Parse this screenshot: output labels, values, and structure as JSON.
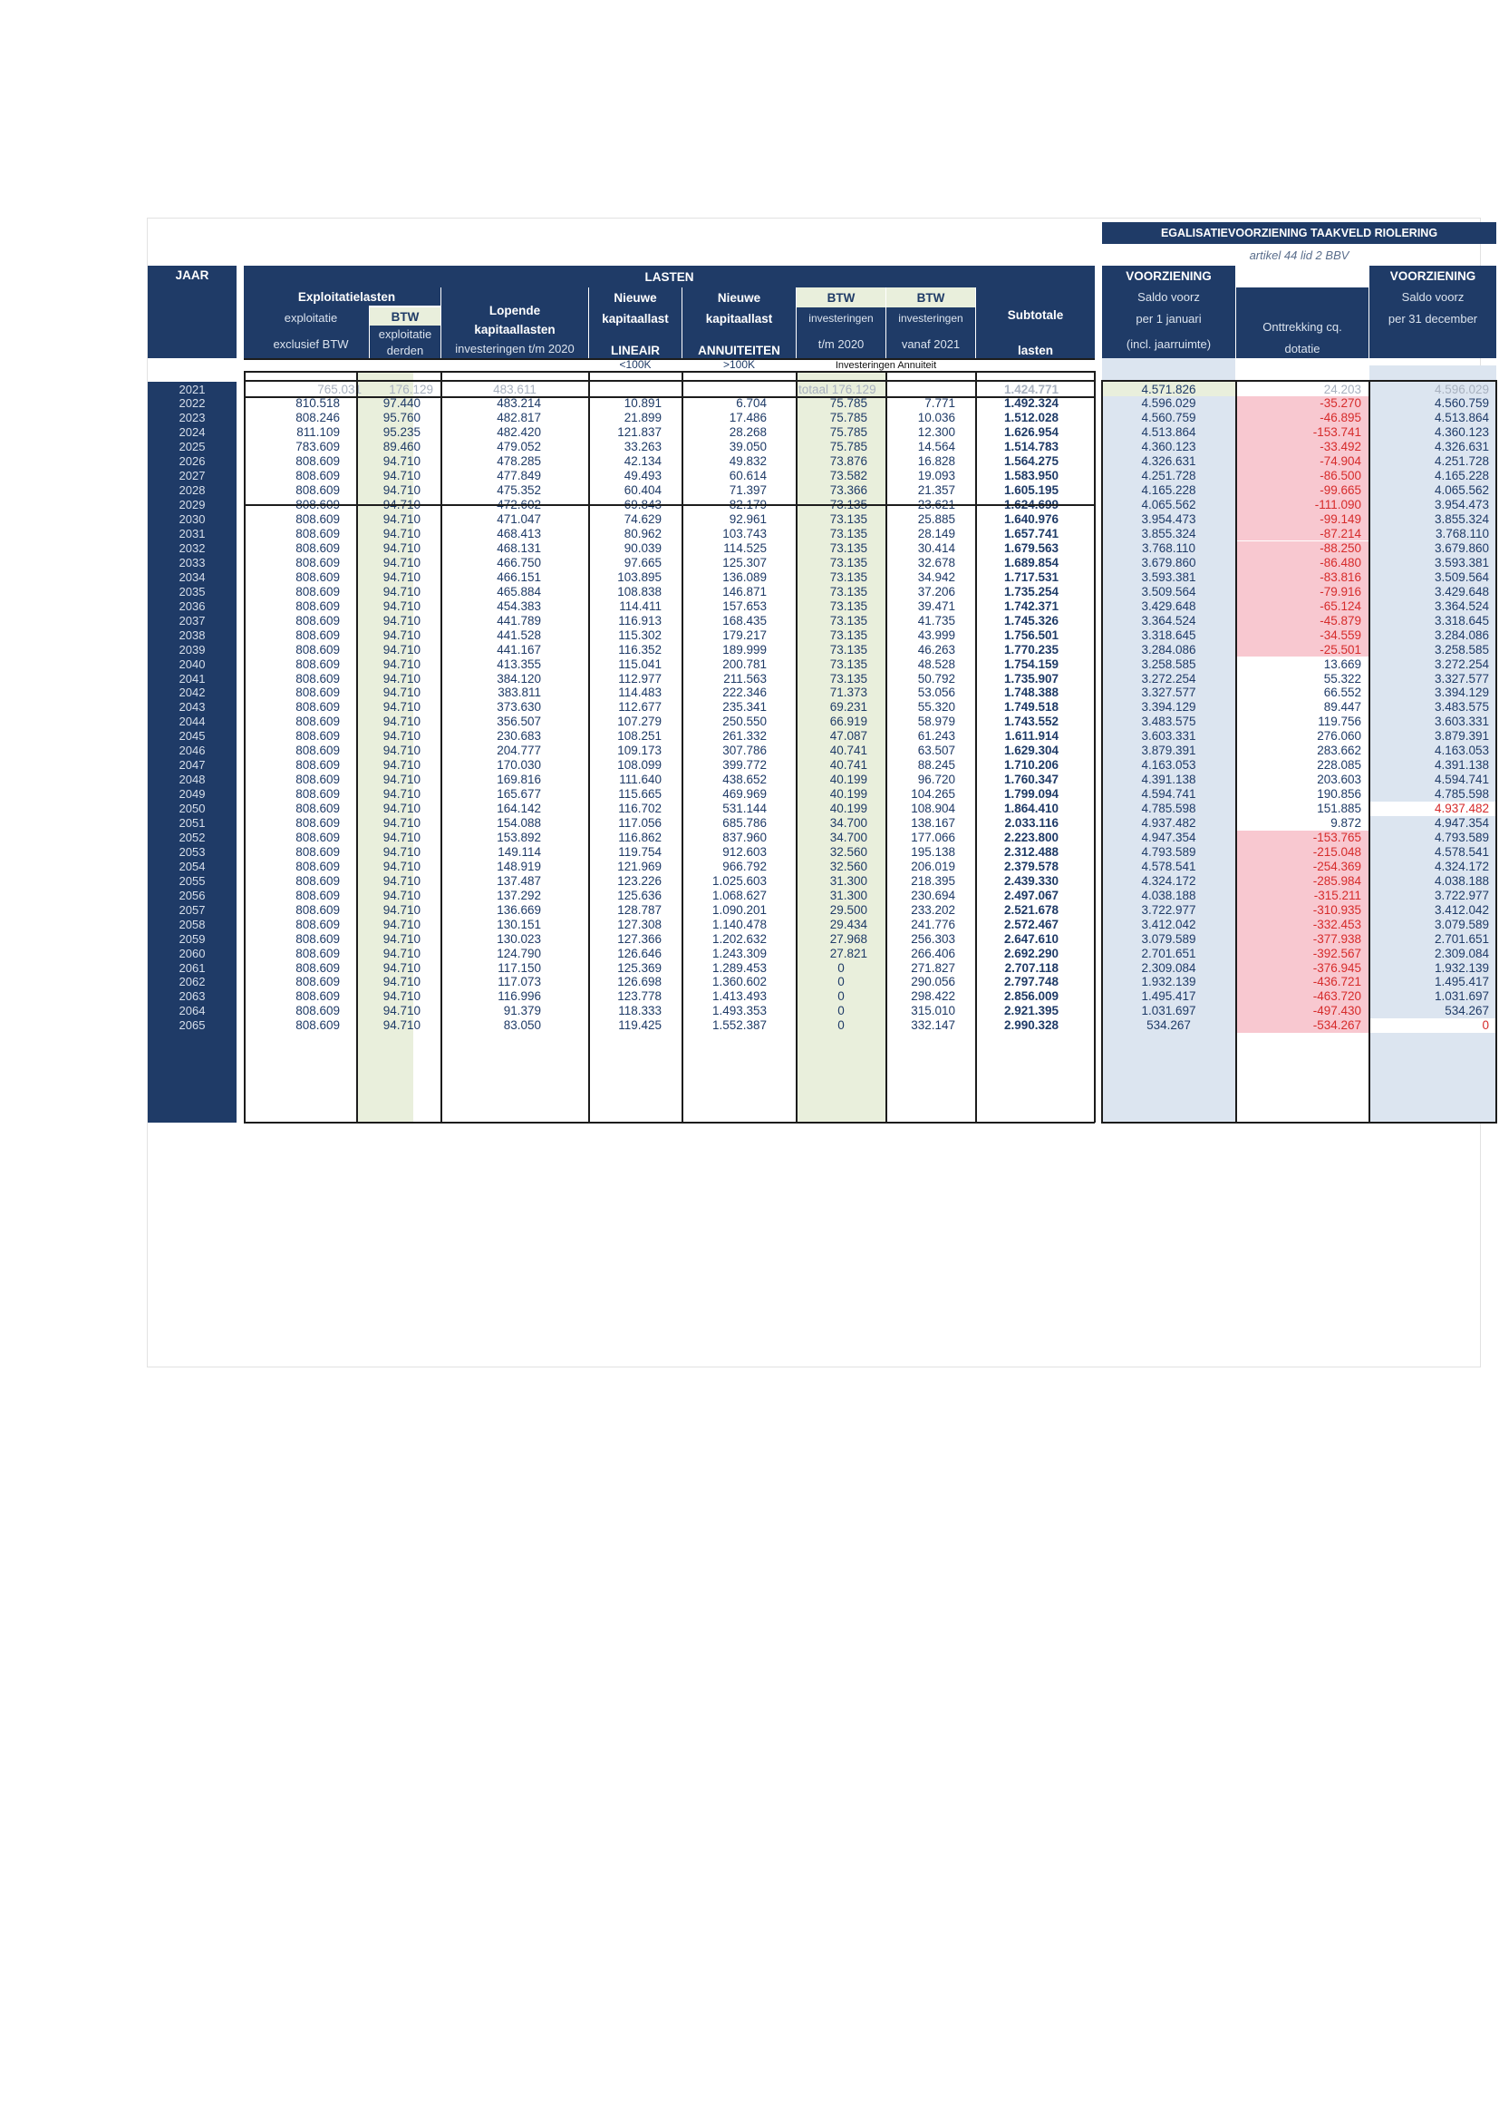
{
  "title_banner": "EGALISATIEVOORZIENING TAAKVELD RIOLERING",
  "subtitle": "artikel 44 lid 2 BBV",
  "headers": {
    "jaar": "JAAR",
    "lasten": "LASTEN",
    "exploitatielasten": "Exploitatielasten",
    "exploitatie": "exploitatie",
    "exclusief_btw": "exclusief BTW",
    "btw": "BTW",
    "btw_exploitatie": "exploitatie",
    "btw_derden": "derden",
    "lopende": "Lopende",
    "kapitaallasten": "kapitaallasten",
    "investeringen_tm2020": "investeringen t/m 2020",
    "nieuwe1": "Nieuwe",
    "kapitaallast1": "kapitaallast",
    "lineair": "LINEAIR",
    "lt100k": "<100K",
    "nieuwe2": "Nieuwe",
    "kapitaallast2": "kapitaallast",
    "annuiteiten": "ANNUITEITEN",
    "gt100k": ">100K",
    "btw_inv": "BTW",
    "investeringen1": "investeringen",
    "tm2020": "t/m 2020",
    "btw_inv2": "BTW",
    "investeringen2": "investeringen",
    "vanaf2021": "vanaf 2021",
    "subtotale": "Subtotale",
    "lasten_lbl": "lasten",
    "investeringen_annuiteit": "Investeringen Annuiteit",
    "voorziening1": "VOORZIENING",
    "saldo_voorz1": "Saldo voorz",
    "per_1_januari": "per 1 januari",
    "incl_jaarruimte": "(incl. jaarruimte)",
    "onttrekking": "Onttrekking cq.",
    "dotatie": "dotatie",
    "voorziening2": "VOORZIENING",
    "saldo_voorz2": "Saldo voorz",
    "per_31_december": "per 31 december"
  },
  "row_2021": {
    "year": "2021",
    "expl": "765.031",
    "btw": "176.129",
    "lopende": "483.611",
    "btw_inv": "totaal 176.129",
    "subtotaal": "1.424.771",
    "saldo_jan": "4.571.826",
    "onttrekking": "24.203",
    "saldo_dec": "4.596.029"
  },
  "rows": [
    [
      "2022",
      "810.518",
      "97.440",
      "483.214",
      "10.891",
      "6.704",
      "75.785",
      "7.771",
      "1.492.324",
      "4.596.029",
      "-35.270",
      "4.560.759"
    ],
    [
      "2023",
      "808.246",
      "95.760",
      "482.817",
      "21.899",
      "17.486",
      "75.785",
      "10.036",
      "1.512.028",
      "4.560.759",
      "-46.895",
      "4.513.864"
    ],
    [
      "2024",
      "811.109",
      "95.235",
      "482.420",
      "121.837",
      "28.268",
      "75.785",
      "12.300",
      "1.626.954",
      "4.513.864",
      "-153.741",
      "4.360.123"
    ],
    [
      "2025",
      "783.609",
      "89.460",
      "479.052",
      "33.263",
      "39.050",
      "75.785",
      "14.564",
      "1.514.783",
      "4.360.123",
      "-33.492",
      "4.326.631"
    ],
    [
      "2026",
      "808.609",
      "94.710",
      "478.285",
      "42.134",
      "49.832",
      "73.876",
      "16.828",
      "1.564.275",
      "4.326.631",
      "-74.904",
      "4.251.728"
    ],
    [
      "2027",
      "808.609",
      "94.710",
      "477.849",
      "49.493",
      "60.614",
      "73.582",
      "19.093",
      "1.583.950",
      "4.251.728",
      "-86.500",
      "4.165.228"
    ],
    [
      "2028",
      "808.609",
      "94.710",
      "475.352",
      "60.404",
      "71.397",
      "73.366",
      "21.357",
      "1.605.195",
      "4.165.228",
      "-99.665",
      "4.065.562"
    ],
    [
      "2029",
      "808.609",
      "94.710",
      "472.602",
      "69.843",
      "82.179",
      "73.135",
      "23.621",
      "1.624.699",
      "4.065.562",
      "-111.090",
      "3.954.473"
    ],
    [
      "2030",
      "808.609",
      "94.710",
      "471.047",
      "74.629",
      "92.961",
      "73.135",
      "25.885",
      "1.640.976",
      "3.954.473",
      "-99.149",
      "3.855.324"
    ],
    [
      "2031",
      "808.609",
      "94.710",
      "468.413",
      "80.962",
      "103.743",
      "73.135",
      "28.149",
      "1.657.741",
      "3.855.324",
      "-87.214",
      "3.768.110"
    ],
    [
      "2032",
      "808.609",
      "94.710",
      "468.131",
      "90.039",
      "114.525",
      "73.135",
      "30.414",
      "1.679.563",
      "3.768.110",
      "-88.250",
      "3.679.860"
    ],
    [
      "2033",
      "808.609",
      "94.710",
      "466.750",
      "97.665",
      "125.307",
      "73.135",
      "32.678",
      "1.689.854",
      "3.679.860",
      "-86.480",
      "3.593.381"
    ],
    [
      "2034",
      "808.609",
      "94.710",
      "466.151",
      "103.895",
      "136.089",
      "73.135",
      "34.942",
      "1.717.531",
      "3.593.381",
      "-83.816",
      "3.509.564"
    ],
    [
      "2035",
      "808.609",
      "94.710",
      "465.884",
      "108.838",
      "146.871",
      "73.135",
      "37.206",
      "1.735.254",
      "3.509.564",
      "-79.916",
      "3.429.648"
    ],
    [
      "2036",
      "808.609",
      "94.710",
      "454.383",
      "114.411",
      "157.653",
      "73.135",
      "39.471",
      "1.742.371",
      "3.429.648",
      "-65.124",
      "3.364.524"
    ],
    [
      "2037",
      "808.609",
      "94.710",
      "441.789",
      "116.913",
      "168.435",
      "73.135",
      "41.735",
      "1.745.326",
      "3.364.524",
      "-45.879",
      "3.318.645"
    ],
    [
      "2038",
      "808.609",
      "94.710",
      "441.528",
      "115.302",
      "179.217",
      "73.135",
      "43.999",
      "1.756.501",
      "3.318.645",
      "-34.559",
      "3.284.086"
    ],
    [
      "2039",
      "808.609",
      "94.710",
      "441.167",
      "116.352",
      "189.999",
      "73.135",
      "46.263",
      "1.770.235",
      "3.284.086",
      "-25.501",
      "3.258.585"
    ],
    [
      "2040",
      "808.609",
      "94.710",
      "413.355",
      "115.041",
      "200.781",
      "73.135",
      "48.528",
      "1.754.159",
      "3.258.585",
      "13.669",
      "3.272.254"
    ],
    [
      "2041",
      "808.609",
      "94.710",
      "384.120",
      "112.977",
      "211.563",
      "73.135",
      "50.792",
      "1.735.907",
      "3.272.254",
      "55.322",
      "3.327.577"
    ],
    [
      "2042",
      "808.609",
      "94.710",
      "383.811",
      "114.483",
      "222.346",
      "71.373",
      "53.056",
      "1.748.388",
      "3.327.577",
      "66.552",
      "3.394.129"
    ],
    [
      "2043",
      "808.609",
      "94.710",
      "373.630",
      "112.677",
      "235.341",
      "69.231",
      "55.320",
      "1.749.518",
      "3.394.129",
      "89.447",
      "3.483.575"
    ],
    [
      "2044",
      "808.609",
      "94.710",
      "356.507",
      "107.279",
      "250.550",
      "66.919",
      "58.979",
      "1.743.552",
      "3.483.575",
      "119.756",
      "3.603.331"
    ],
    [
      "2045",
      "808.609",
      "94.710",
      "230.683",
      "108.251",
      "261.332",
      "47.087",
      "61.243",
      "1.611.914",
      "3.603.331",
      "276.060",
      "3.879.391"
    ],
    [
      "2046",
      "808.609",
      "94.710",
      "204.777",
      "109.173",
      "307.786",
      "40.741",
      "63.507",
      "1.629.304",
      "3.879.391",
      "283.662",
      "4.163.053"
    ],
    [
      "2047",
      "808.609",
      "94.710",
      "170.030",
      "108.099",
      "399.772",
      "40.741",
      "88.245",
      "1.710.206",
      "4.163.053",
      "228.085",
      "4.391.138"
    ],
    [
      "2048",
      "808.609",
      "94.710",
      "169.816",
      "111.640",
      "438.652",
      "40.199",
      "96.720",
      "1.760.347",
      "4.391.138",
      "203.603",
      "4.594.741"
    ],
    [
      "2049",
      "808.609",
      "94.710",
      "165.677",
      "115.665",
      "469.969",
      "40.199",
      "104.265",
      "1.799.094",
      "4.594.741",
      "190.856",
      "4.785.598"
    ],
    [
      "2050",
      "808.609",
      "94.710",
      "164.142",
      "116.702",
      "531.144",
      "40.199",
      "108.904",
      "1.864.410",
      "4.785.598",
      "151.885",
      "4.937.482"
    ],
    [
      "2051",
      "808.609",
      "94.710",
      "154.088",
      "117.056",
      "685.786",
      "34.700",
      "138.167",
      "2.033.116",
      "4.937.482",
      "9.872",
      "4.947.354"
    ],
    [
      "2052",
      "808.609",
      "94.710",
      "153.892",
      "116.862",
      "837.960",
      "34.700",
      "177.066",
      "2.223.800",
      "4.947.354",
      "-153.765",
      "4.793.589"
    ],
    [
      "2053",
      "808.609",
      "94.710",
      "149.114",
      "119.754",
      "912.603",
      "32.560",
      "195.138",
      "2.312.488",
      "4.793.589",
      "-215.048",
      "4.578.541"
    ],
    [
      "2054",
      "808.609",
      "94.710",
      "148.919",
      "121.969",
      "966.792",
      "32.560",
      "206.019",
      "2.379.578",
      "4.578.541",
      "-254.369",
      "4.324.172"
    ],
    [
      "2055",
      "808.609",
      "94.710",
      "137.487",
      "123.226",
      "1.025.603",
      "31.300",
      "218.395",
      "2.439.330",
      "4.324.172",
      "-285.984",
      "4.038.188"
    ],
    [
      "2056",
      "808.609",
      "94.710",
      "137.292",
      "125.636",
      "1.068.627",
      "31.300",
      "230.694",
      "2.497.067",
      "4.038.188",
      "-315.211",
      "3.722.977"
    ],
    [
      "2057",
      "808.609",
      "94.710",
      "136.669",
      "128.787",
      "1.090.201",
      "29.500",
      "233.202",
      "2.521.678",
      "3.722.977",
      "-310.935",
      "3.412.042"
    ],
    [
      "2058",
      "808.609",
      "94.710",
      "130.151",
      "127.308",
      "1.140.478",
      "29.434",
      "241.776",
      "2.572.467",
      "3.412.042",
      "-332.453",
      "3.079.589"
    ],
    [
      "2059",
      "808.609",
      "94.710",
      "130.023",
      "127.366",
      "1.202.632",
      "27.968",
      "256.303",
      "2.647.610",
      "3.079.589",
      "-377.938",
      "2.701.651"
    ],
    [
      "2060",
      "808.609",
      "94.710",
      "124.790",
      "126.646",
      "1.243.309",
      "27.821",
      "266.406",
      "2.692.290",
      "2.701.651",
      "-392.567",
      "2.309.084"
    ],
    [
      "2061",
      "808.609",
      "94.710",
      "117.150",
      "125.369",
      "1.289.453",
      "0",
      "271.827",
      "2.707.118",
      "2.309.084",
      "-376.945",
      "1.932.139"
    ],
    [
      "2062",
      "808.609",
      "94.710",
      "117.073",
      "126.698",
      "1.360.602",
      "0",
      "290.056",
      "2.797.748",
      "1.932.139",
      "-436.721",
      "1.495.417"
    ],
    [
      "2063",
      "808.609",
      "94.710",
      "116.996",
      "123.778",
      "1.413.493",
      "0",
      "298.422",
      "2.856.009",
      "1.495.417",
      "-463.720",
      "1.031.697"
    ],
    [
      "2064",
      "808.609",
      "94.710",
      "91.379",
      "118.333",
      "1.493.353",
      "0",
      "315.010",
      "2.921.395",
      "1.031.697",
      "-497.430",
      "534.267"
    ],
    [
      "2065",
      "808.609",
      "94.710",
      "83.050",
      "119.425",
      "1.552.387",
      "0",
      "332.147",
      "2.990.328",
      "534.267",
      "-534.267",
      "0"
    ]
  ],
  "colors": {
    "navy": "#1f3b67",
    "btw_green": "#e9efdc",
    "voorz_blue": "#dce5f0",
    "onttrekking_pink": "#f8c8d0",
    "negative_red": "#d62b2b"
  }
}
